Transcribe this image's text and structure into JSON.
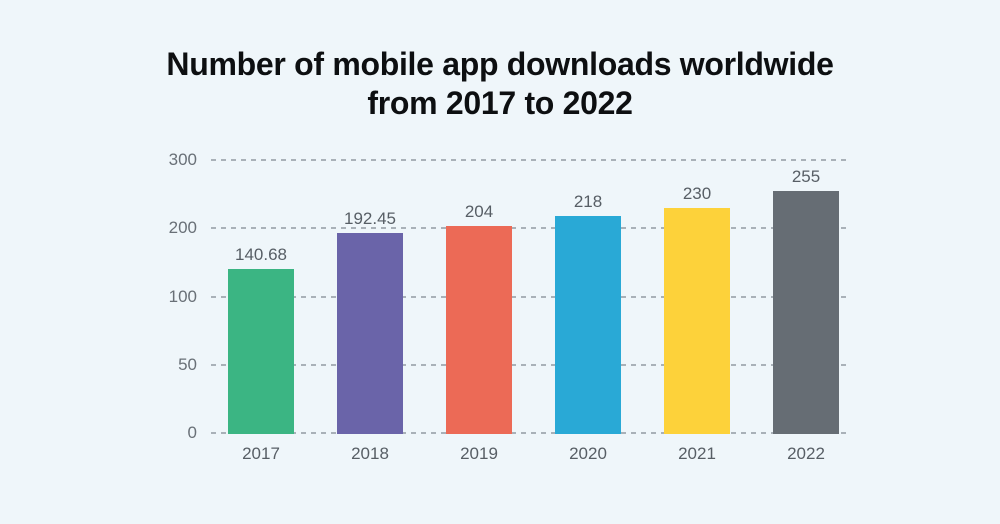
{
  "title": {
    "line1": "Number of mobile app downloads worldwide",
    "line2": "from 2017 to 2022"
  },
  "chart_data": {
    "type": "bar",
    "title": "Number of mobile app downloads worldwide from 2017 to 2022",
    "categories": [
      "2017",
      "2018",
      "2019",
      "2020",
      "2021",
      "2022"
    ],
    "values": [
      140.68,
      192.45,
      204,
      218,
      230,
      255
    ],
    "value_labels": [
      "140.68",
      "192.45",
      "204",
      "218",
      "230",
      "255"
    ],
    "bar_colors": [
      "#3bb583",
      "#6a64a9",
      "#ec6a56",
      "#29a9d6",
      "#fdd23a",
      "#666d74"
    ],
    "y_ticks": [
      0,
      50,
      100,
      200,
      300
    ],
    "ylim": [
      0,
      300
    ],
    "y_scale": "equal-spaced-ticks",
    "grid": "horizontal-dashed",
    "legend": "none",
    "xlabel": "",
    "ylabel": ""
  },
  "colors": {
    "background": "#eff6fa",
    "title_text": "#0d0f11",
    "grid_line": "#a9b1b8",
    "tick_label": "#697077",
    "value_label": "#575e65",
    "category_label": "#575e65"
  }
}
